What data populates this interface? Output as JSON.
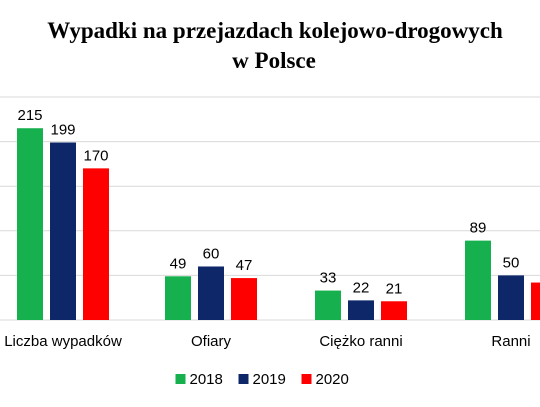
{
  "chart_data": {
    "type": "bar",
    "title_lines": [
      "Wypadki na przejazdach kolejowo-drogowych",
      "w Polsce"
    ],
    "categories": [
      "Liczba wypadków",
      "Ofiary",
      "Ciężko ranni",
      "Ranni"
    ],
    "series": [
      {
        "name": "2018",
        "values": [
          215,
          49,
          33,
          89
        ],
        "color": "#17B04F"
      },
      {
        "name": "2019",
        "values": [
          199,
          60,
          22,
          50
        ],
        "color": "#0D2769"
      },
      {
        "name": "2020",
        "values": [
          170,
          47,
          21,
          42
        ],
        "color": "#FF0000"
      }
    ],
    "data_labels": [
      [
        "215",
        "49",
        "33",
        "89"
      ],
      [
        "199",
        "60",
        "22",
        "50"
      ],
      [
        "170",
        "47",
        "21",
        ""
      ]
    ],
    "xlabel": "",
    "ylabel": "",
    "ylim": [
      0,
      250
    ],
    "grid": true,
    "legend_position": "bottom"
  }
}
